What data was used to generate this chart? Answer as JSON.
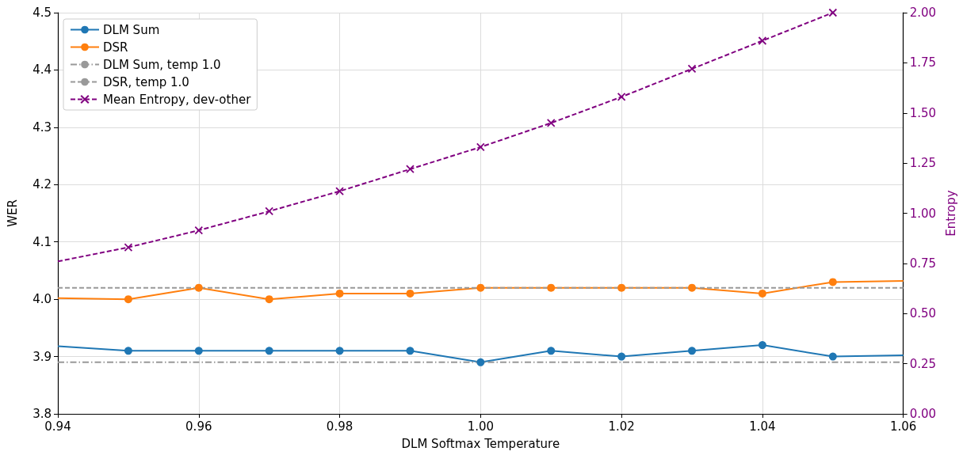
{
  "chart_data": {
    "type": "line",
    "xlabel": "DLM Softmax Temperature",
    "ylabel": "WER",
    "y2label": "Entropy",
    "xlim": [
      0.94,
      1.06
    ],
    "xticks": [
      0.94,
      0.96,
      0.98,
      {
        "value": 1.0,
        "label": "1.00"
      },
      1.02,
      1.04,
      1.06
    ],
    "ylim": [
      3.8,
      4.5
    ],
    "yticks": [
      3.8,
      3.9,
      {
        "value": 4.0,
        "label": "4.0"
      },
      4.1,
      4.2,
      4.3,
      4.4,
      4.5
    ],
    "y2lim": [
      0,
      2
    ],
    "y2ticks": [
      {
        "value": 0,
        "label": "0.00"
      },
      0.25,
      {
        "value": 0.5,
        "label": "0.50"
      },
      0.75,
      {
        "value": 1,
        "label": "1.00"
      },
      1.25,
      {
        "value": 1.5,
        "label": "1.50"
      },
      1.75,
      {
        "value": 2,
        "label": "2.00"
      }
    ],
    "grid": true,
    "legend": "top left",
    "series": [
      {
        "name": "DLM Sum",
        "color": "#1f77b4",
        "marker": "circle",
        "line_style": "solid",
        "x": [
          0.94,
          0.95,
          0.96,
          0.97,
          0.98,
          0.99,
          1.0,
          1.01,
          1.02,
          1.03,
          1.04,
          1.05,
          1.06
        ],
        "values": [
          3.918,
          3.91,
          3.91,
          3.91,
          3.91,
          3.91,
          3.89,
          3.91,
          3.9,
          3.91,
          3.92,
          3.9,
          3.902
        ]
      },
      {
        "name": "DSR",
        "color": "#ff7f0e",
        "marker": "circle",
        "line_style": "solid",
        "x": [
          0.94,
          0.95,
          0.96,
          0.97,
          0.98,
          0.99,
          1.0,
          1.01,
          1.02,
          1.03,
          1.04,
          1.05,
          1.06
        ],
        "values": [
          4.002,
          4.0,
          4.02,
          4.0,
          4.01,
          4.01,
          4.02,
          4.02,
          4.02,
          4.02,
          4.01,
          4.03,
          4.032
        ]
      },
      {
        "name": "DLM Sum, temp 1.0",
        "color": "#999999",
        "marker": "none",
        "line_style": "dashdot",
        "x": [
          0.94,
          1.06
        ],
        "values": [
          3.89,
          3.89
        ]
      },
      {
        "name": "DSR, temp 1.0",
        "color": "#999999",
        "marker": "none",
        "line_style": "dashed",
        "x": [
          0.94,
          1.06
        ],
        "values": [
          4.02,
          4.02
        ]
      },
      {
        "name": "Mean Entropy, dev-other",
        "color": "#800080",
        "marker": "cross",
        "line_style": "dashed",
        "axis": "y2",
        "x": [
          0.94,
          0.95,
          0.96,
          0.97,
          0.98,
          0.99,
          1.0,
          1.01,
          1.02,
          1.03,
          1.04,
          1.05
        ],
        "values": [
          0.76,
          0.83,
          0.915,
          1.01,
          1.11,
          1.22,
          1.33,
          1.45,
          1.58,
          1.72,
          1.86,
          2.0
        ]
      }
    ]
  }
}
